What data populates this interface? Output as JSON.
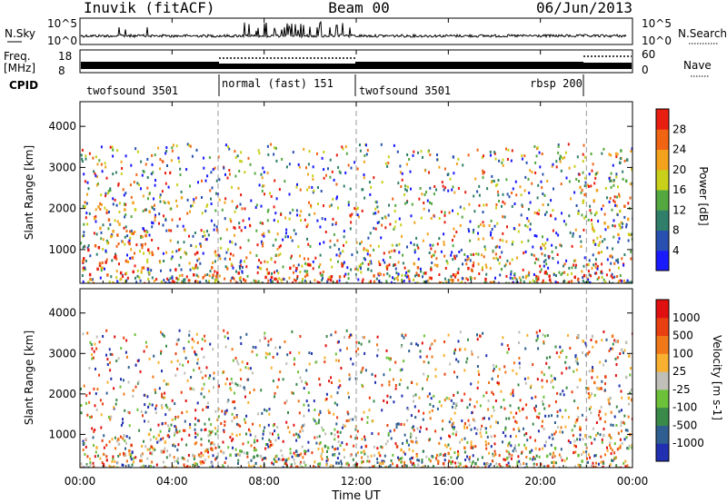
{
  "header": {
    "station": "Inuvik (fitACF)",
    "beam": "Beam 00",
    "date": "06/Jun/2013"
  },
  "top_panels": {
    "nsky": {
      "label": "N.Sky",
      "tick_high": "10^5",
      "tick_low": "10^0"
    },
    "nsearch": {
      "label": "N.Search",
      "tick_high": "10^5",
      "tick_low": "10^0"
    },
    "freq": {
      "label_line1": "Freq.",
      "label_line2": "[MHz]",
      "tick_high": "18",
      "tick_low": "8"
    },
    "nave": {
      "label": "Nave",
      "tick_high": "60",
      "tick_low": "0"
    },
    "cpid": {
      "label": "CPID",
      "segments": [
        {
          "name": "twofsound 3501",
          "start_h": 0,
          "end_h": 6
        },
        {
          "name": "normal (fast) 151",
          "start_h": 6,
          "end_h": 12
        },
        {
          "name": "twofsound 3501",
          "start_h": 12,
          "end_h": 22
        },
        {
          "name": "rbsp 200",
          "start_h": 22,
          "end_h": 24
        }
      ],
      "rbsp_label": "rbsp 200"
    }
  },
  "time_axis": {
    "label": "Time UT",
    "ticks": [
      "00:00",
      "04:00",
      "08:00",
      "12:00",
      "16:00",
      "20:00",
      "00:00"
    ]
  },
  "chart_data": [
    {
      "type": "heatmap",
      "title": "Power",
      "ylabel": "Slant Range [km]",
      "xlabel": "Time UT",
      "x_range_hours": [
        0,
        24
      ],
      "ylim": [
        180,
        4600
      ],
      "y_ticks": [
        "1000",
        "2000",
        "3000",
        "4000"
      ],
      "colorbar": {
        "label": "Power [dB]",
        "ticks": [
          "4",
          "8",
          "12",
          "16",
          "20",
          "24",
          "28"
        ],
        "colors": [
          "#1a1aff",
          "#2850b0",
          "#2f7f6a",
          "#53a83f",
          "#c8d01a",
          "#f3a21e",
          "#f06414",
          "#e81e10"
        ]
      },
      "regions": [
        {
          "t0": 0,
          "t1": 6,
          "r0": 300,
          "r1": 1100,
          "level": 7
        },
        {
          "t0": 0,
          "t1": 3,
          "r0": 1100,
          "r1": 2200,
          "level": 5
        },
        {
          "t0": 6,
          "t1": 12,
          "r0": 250,
          "r1": 700,
          "level": 7
        },
        {
          "t0": 12,
          "t1": 16,
          "r0": 300,
          "r1": 750,
          "level": 6
        },
        {
          "t0": 16,
          "t1": 22,
          "r0": 250,
          "r1": 650,
          "level": 7
        },
        {
          "t0": 21.5,
          "t1": 24,
          "r0": 1100,
          "r1": 2600,
          "level": 5
        },
        {
          "t0": 23.2,
          "t1": 24,
          "r0": 2600,
          "r1": 3500,
          "level": 3
        }
      ]
    },
    {
      "type": "heatmap",
      "title": "Velocity",
      "ylabel": "Slant Range [km]",
      "xlabel": "Time UT",
      "x_range_hours": [
        0,
        24
      ],
      "ylim": [
        180,
        4600
      ],
      "y_ticks": [
        "1000",
        "2000",
        "3000",
        "4000"
      ],
      "colorbar": {
        "label": "Velocity [m s-1]",
        "ticks": [
          "1000",
          "500",
          "100",
          "25",
          "-25",
          "-100",
          "-500",
          "-1000"
        ],
        "colors": [
          "#2030b0",
          "#2f5f90",
          "#3a8a4a",
          "#6cc03a",
          "#c0c0b8",
          "#f8b030",
          "#f07818",
          "#e84010",
          "#e01010"
        ]
      },
      "regions": [
        {
          "t0": 0,
          "t1": 6,
          "r0": 300,
          "r1": 1100,
          "class": "away_low"
        },
        {
          "t0": 6,
          "t1": 12,
          "r0": 250,
          "r1": 750,
          "class": "toward_low"
        },
        {
          "t0": 12,
          "t1": 17,
          "r0": 300,
          "r1": 800,
          "class": "away_mid"
        },
        {
          "t0": 17,
          "t1": 22,
          "r0": 300,
          "r1": 700,
          "class": "toward_mid"
        },
        {
          "t0": 21.5,
          "t1": 24,
          "r0": 1000,
          "r1": 3500,
          "class": "away_high"
        }
      ]
    }
  ]
}
